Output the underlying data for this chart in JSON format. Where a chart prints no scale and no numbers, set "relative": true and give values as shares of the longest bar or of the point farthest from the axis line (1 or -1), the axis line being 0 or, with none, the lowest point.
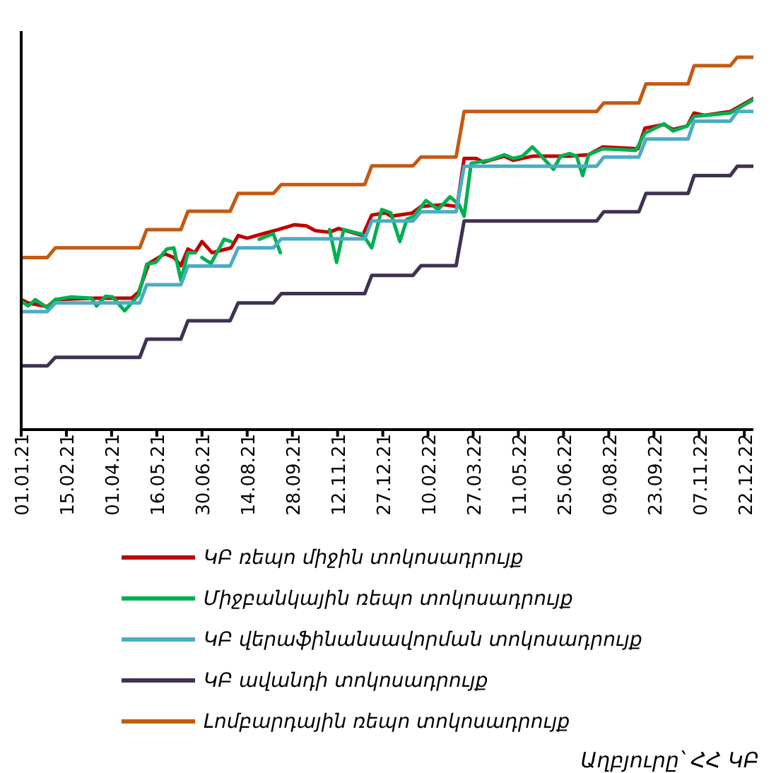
{
  "chart_data": {
    "type": "line",
    "relative": true,
    "x": [
      "2021-01-01",
      "2021-01-27",
      "2021-02-04",
      "2021-04-29",
      "2021-05-06",
      "2021-06-09",
      "2021-06-16",
      "2021-07-28",
      "2021-08-05",
      "2021-09-09",
      "2021-09-17",
      "2021-12-09",
      "2021-12-16",
      "2022-01-26",
      "2022-02-03",
      "2022-03-10",
      "2022-03-18",
      "2022-07-28",
      "2022-08-04",
      "2022-09-08",
      "2022-09-15",
      "2022-10-27",
      "2022-11-02",
      "2022-12-08",
      "2022-12-15",
      "2022-12-31"
    ],
    "xlim": [
      "2021-01-01",
      "2022-12-31"
    ],
    "xticks": [
      {
        "value": "2021-01-01",
        "label": "01.01.21"
      },
      {
        "value": "2021-02-15",
        "label": "15.02.21"
      },
      {
        "value": "2021-04-01",
        "label": "01.04.21"
      },
      {
        "value": "2021-05-16",
        "label": "16.05.21"
      },
      {
        "value": "2021-06-30",
        "label": "30.06.21"
      },
      {
        "value": "2021-08-14",
        "label": "14.08.21"
      },
      {
        "value": "2021-09-28",
        "label": "28.09.21"
      },
      {
        "value": "2021-11-12",
        "label": "12.11.21"
      },
      {
        "value": "2021-12-27",
        "label": "27.12.21"
      },
      {
        "value": "2022-02-10",
        "label": "10.02.22"
      },
      {
        "value": "2022-03-27",
        "label": "27.03.22"
      },
      {
        "value": "2022-05-11",
        "label": "11.05.22"
      },
      {
        "value": "2022-06-25",
        "label": "25.06.22"
      },
      {
        "value": "2022-08-09",
        "label": "09.08.22"
      },
      {
        "value": "2022-09-23",
        "label": "23.09.22"
      },
      {
        "value": "2022-11-07",
        "label": "07.11.22"
      },
      {
        "value": "2022-12-22",
        "label": "22.12.22"
      }
    ],
    "legend": "bottom",
    "annotations": [
      "Աղբյուրը՝ ՀՀ ԿԲ"
    ],
    "series": [
      {
        "name": "ԿԲ ռեպո միջին տոկոսադրույք",
        "color": "#c00000",
        "x": [
          "2021-01-01",
          "2021-01-08",
          "2021-01-27",
          "2021-02-04",
          "2021-03-15",
          "2021-04-21",
          "2021-04-28",
          "2021-05-08",
          "2021-05-24",
          "2021-06-02",
          "2021-06-09",
          "2021-06-16",
          "2021-06-23",
          "2021-06-30",
          "2021-07-10",
          "2021-07-29",
          "2021-08-05",
          "2021-08-14",
          "2021-08-30",
          "2021-09-14",
          "2021-09-30",
          "2021-10-12",
          "2021-10-21",
          "2021-11-04",
          "2021-11-13",
          "2021-12-07",
          "2021-12-16",
          "2021-12-30",
          "2022-01-04",
          "2022-01-25",
          "2022-02-03",
          "2022-02-25",
          "2022-03-11",
          "2022-03-18",
          "2022-03-30",
          "2022-04-06",
          "2022-04-27",
          "2022-05-06",
          "2022-05-25",
          "2022-07-01",
          "2022-07-20",
          "2022-08-03",
          "2022-09-07",
          "2022-09-14",
          "2022-10-03",
          "2022-10-12",
          "2022-10-26",
          "2022-11-02",
          "2022-11-12",
          "2022-12-08",
          "2022-12-31"
        ],
        "values": [
          0.349,
          0.34,
          0.33,
          0.349,
          0.353,
          0.353,
          0.369,
          0.446,
          0.472,
          0.462,
          0.44,
          0.485,
          0.475,
          0.505,
          0.475,
          0.488,
          0.521,
          0.514,
          0.526,
          0.537,
          0.55,
          0.547,
          0.534,
          0.53,
          0.54,
          0.521,
          0.576,
          0.582,
          0.573,
          0.581,
          0.599,
          0.604,
          0.599,
          0.728,
          0.728,
          0.718,
          0.734,
          0.723,
          0.734,
          0.734,
          0.738,
          0.759,
          0.754,
          0.809,
          0.819,
          0.806,
          0.815,
          0.85,
          0.844,
          0.854,
          0.889
        ]
      },
      {
        "name": "Միջբանկային ռեպո տոկոսադրույք",
        "color": "#00b050",
        "x": [
          "2021-01-01",
          "2021-01-08",
          "2021-01-15",
          "2021-01-27",
          "2021-02-04",
          "2021-02-19",
          "2021-03-12",
          "2021-03-17",
          "2021-03-26",
          "2021-04-02",
          "2021-04-14",
          "2021-04-28",
          "2021-05-06",
          "2021-05-15",
          "2021-05-26",
          "2021-06-02",
          "2021-06-09",
          "2021-06-16",
          "2021-06-23",
          "2021-06-26",
          "2021-06-30",
          "2021-07-09",
          "2021-07-22",
          "2021-07-29",
          "2021-08-15",
          "2021-08-26",
          "2021-09-09",
          "2021-09-16",
          "2021-10-15",
          "2021-11-04",
          "2021-11-11",
          "2021-11-18",
          "2021-12-07",
          "2021-12-16",
          "2021-12-26",
          "2022-01-04",
          "2022-01-13",
          "2022-01-20",
          "2022-01-27",
          "2022-02-08",
          "2022-02-20",
          "2022-03-04",
          "2022-03-13",
          "2022-03-18",
          "2022-03-25",
          "2022-04-13",
          "2022-04-27",
          "2022-05-06",
          "2022-05-15",
          "2022-05-25",
          "2022-06-03",
          "2022-06-15",
          "2022-06-22",
          "2022-07-01",
          "2022-07-08",
          "2022-07-14",
          "2022-07-20",
          "2022-08-03",
          "2022-09-05",
          "2022-09-14",
          "2022-10-03",
          "2022-10-12",
          "2022-10-26",
          "2022-11-02",
          "2022-12-08",
          "2022-12-31"
        ],
        "values": [
          0.345,
          0.332,
          0.349,
          0.327,
          0.349,
          0.356,
          0.353,
          0.332,
          0.358,
          0.356,
          0.319,
          0.362,
          0.444,
          0.449,
          0.485,
          0.488,
          0.401,
          0.475,
          0.475,
          null,
          0.462,
          0.446,
          0.511,
          0.505,
          null,
          0.511,
          0.526,
          0.475,
          null,
          0.537,
          0.449,
          0.537,
          0.524,
          0.488,
          0.591,
          0.582,
          0.505,
          0.565,
          0.573,
          0.615,
          0.591,
          0.625,
          0.604,
          0.573,
          0.715,
          0.724,
          0.738,
          0.728,
          0.734,
          0.759,
          0.734,
          0.699,
          0.734,
          0.741,
          0.734,
          0.682,
          0.738,
          0.754,
          0.75,
          0.796,
          0.821,
          0.802,
          0.815,
          0.841,
          0.85,
          0.886
        ]
      },
      {
        "name": "ԿԲ վերաֆինանսավորման տոկոսադրույք",
        "color": "#4bacc6",
        "values": [
          0.317,
          0.317,
          0.34,
          0.34,
          0.389,
          0.389,
          0.439,
          0.439,
          0.488,
          0.488,
          0.512,
          0.512,
          0.56,
          0.56,
          0.585,
          0.585,
          0.707,
          0.707,
          0.732,
          0.732,
          0.78,
          0.78,
          0.828,
          0.828,
          0.854,
          0.854
        ]
      },
      {
        "name": "ԿԲ ավանդի տոկոսադրույք",
        "color": "#403152",
        "values": [
          0.171,
          0.171,
          0.194,
          0.194,
          0.243,
          0.243,
          0.292,
          0.292,
          0.34,
          0.34,
          0.365,
          0.365,
          0.414,
          0.414,
          0.44,
          0.44,
          0.56,
          0.56,
          0.585,
          0.585,
          0.634,
          0.634,
          0.682,
          0.682,
          0.707,
          0.707
        ]
      },
      {
        "name": "Լոմբարդային ռեպո տոկոսադրույք",
        "color": "#c55a11",
        "values": [
          0.462,
          0.462,
          0.488,
          0.488,
          0.537,
          0.537,
          0.586,
          0.586,
          0.634,
          0.634,
          0.658,
          0.658,
          0.708,
          0.708,
          0.732,
          0.732,
          0.854,
          0.854,
          0.877,
          0.877,
          0.928,
          0.928,
          0.977,
          0.977,
          1,
          1
        ]
      }
    ]
  }
}
